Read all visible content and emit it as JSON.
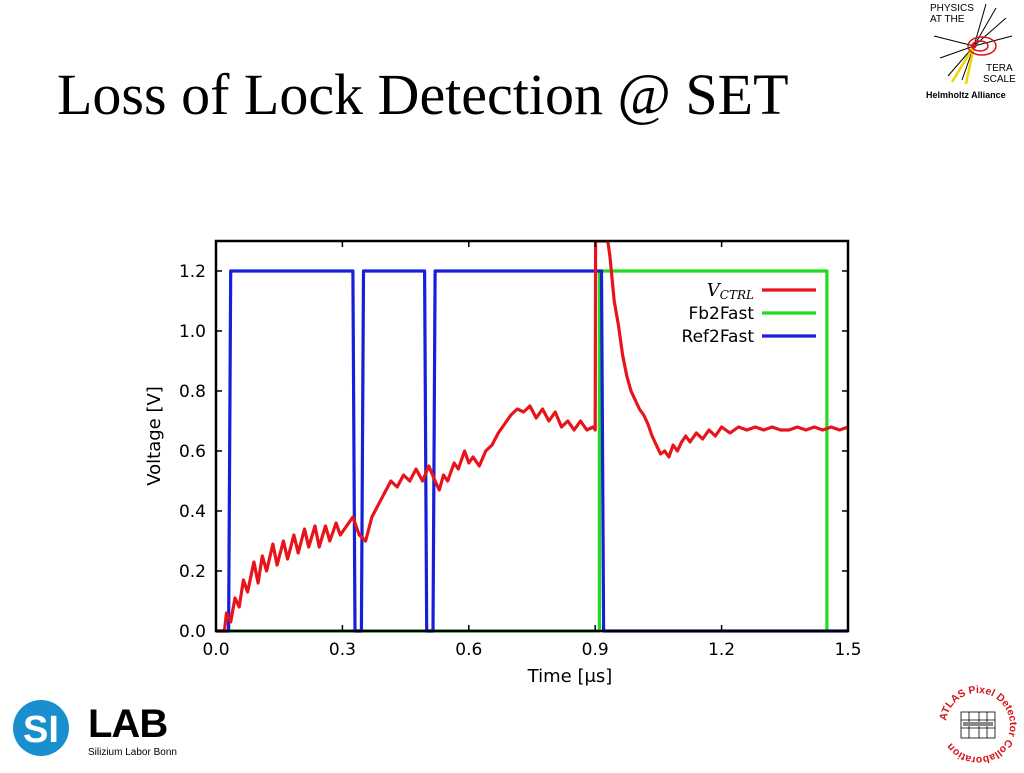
{
  "slide": {
    "title": "Loss of Lock Detection @ SET"
  },
  "logos": {
    "physics_terascale": {
      "line1": "PHYSICS",
      "line2": "AT THE",
      "line3": "TERA",
      "line4": "SCALE",
      "line5": "Helmholtz Alliance"
    },
    "silab": {
      "mark": "SI",
      "name": "LAB",
      "subtitle": "Silizium Labor Bonn"
    },
    "atlas_pixel": {
      "text": "ATLAS Pixel Detector Collaboration"
    }
  },
  "chart_data": {
    "type": "line",
    "title": "",
    "xlabel": "Time [μs]",
    "ylabel": "Voltage [V]",
    "xlim": [
      0.0,
      1.5
    ],
    "ylim": [
      0.0,
      1.3
    ],
    "xticks": [
      "0.0",
      "0.3",
      "0.6",
      "0.9",
      "1.2",
      "1.5"
    ],
    "yticks": [
      "0.0",
      "0.2",
      "0.4",
      "0.6",
      "0.8",
      "1.0",
      "1.2"
    ],
    "grid": false,
    "legend_position": "top-right",
    "series": [
      {
        "name": "V_CTRL",
        "legend_main": "V",
        "legend_sub": "CTRL",
        "color": "#e8141b",
        "points": [
          [
            0.0,
            0.0
          ],
          [
            0.02,
            0.0
          ],
          [
            0.025,
            0.06
          ],
          [
            0.035,
            0.03
          ],
          [
            0.045,
            0.11
          ],
          [
            0.055,
            0.08
          ],
          [
            0.065,
            0.17
          ],
          [
            0.075,
            0.13
          ],
          [
            0.09,
            0.23
          ],
          [
            0.1,
            0.16
          ],
          [
            0.11,
            0.25
          ],
          [
            0.12,
            0.2
          ],
          [
            0.135,
            0.29
          ],
          [
            0.145,
            0.22
          ],
          [
            0.16,
            0.3
          ],
          [
            0.17,
            0.24
          ],
          [
            0.185,
            0.32
          ],
          [
            0.195,
            0.26
          ],
          [
            0.21,
            0.34
          ],
          [
            0.22,
            0.28
          ],
          [
            0.235,
            0.35
          ],
          [
            0.245,
            0.28
          ],
          [
            0.26,
            0.35
          ],
          [
            0.27,
            0.3
          ],
          [
            0.285,
            0.36
          ],
          [
            0.295,
            0.32
          ],
          [
            0.31,
            0.35
          ],
          [
            0.325,
            0.38
          ],
          [
            0.34,
            0.32
          ],
          [
            0.355,
            0.3
          ],
          [
            0.37,
            0.38
          ],
          [
            0.385,
            0.42
          ],
          [
            0.4,
            0.46
          ],
          [
            0.415,
            0.5
          ],
          [
            0.43,
            0.48
          ],
          [
            0.445,
            0.52
          ],
          [
            0.46,
            0.5
          ],
          [
            0.475,
            0.54
          ],
          [
            0.49,
            0.5
          ],
          [
            0.505,
            0.55
          ],
          [
            0.52,
            0.5
          ],
          [
            0.53,
            0.47
          ],
          [
            0.54,
            0.52
          ],
          [
            0.55,
            0.5
          ],
          [
            0.565,
            0.56
          ],
          [
            0.575,
            0.54
          ],
          [
            0.59,
            0.6
          ],
          [
            0.6,
            0.56
          ],
          [
            0.61,
            0.58
          ],
          [
            0.625,
            0.55
          ],
          [
            0.64,
            0.6
          ],
          [
            0.655,
            0.62
          ],
          [
            0.67,
            0.66
          ],
          [
            0.685,
            0.69
          ],
          [
            0.7,
            0.72
          ],
          [
            0.715,
            0.74
          ],
          [
            0.73,
            0.73
          ],
          [
            0.745,
            0.75
          ],
          [
            0.76,
            0.71
          ],
          [
            0.775,
            0.74
          ],
          [
            0.79,
            0.7
          ],
          [
            0.805,
            0.73
          ],
          [
            0.82,
            0.68
          ],
          [
            0.835,
            0.7
          ],
          [
            0.85,
            0.67
          ],
          [
            0.865,
            0.7
          ],
          [
            0.88,
            0.67
          ],
          [
            0.895,
            0.68
          ],
          [
            0.9,
            0.67
          ],
          [
            0.901,
            1.3
          ],
          [
            0.93,
            1.3
          ],
          [
            0.935,
            1.25
          ],
          [
            0.945,
            1.1
          ],
          [
            0.955,
            1.02
          ],
          [
            0.965,
            0.92
          ],
          [
            0.975,
            0.85
          ],
          [
            0.985,
            0.8
          ],
          [
            0.995,
            0.77
          ],
          [
            1.005,
            0.74
          ],
          [
            1.015,
            0.72
          ],
          [
            1.025,
            0.69
          ],
          [
            1.035,
            0.65
          ],
          [
            1.045,
            0.62
          ],
          [
            1.055,
            0.59
          ],
          [
            1.065,
            0.6
          ],
          [
            1.075,
            0.58
          ],
          [
            1.085,
            0.62
          ],
          [
            1.095,
            0.6
          ],
          [
            1.105,
            0.63
          ],
          [
            1.115,
            0.65
          ],
          [
            1.125,
            0.63
          ],
          [
            1.14,
            0.66
          ],
          [
            1.155,
            0.64
          ],
          [
            1.17,
            0.67
          ],
          [
            1.185,
            0.65
          ],
          [
            1.2,
            0.68
          ],
          [
            1.22,
            0.66
          ],
          [
            1.24,
            0.68
          ],
          [
            1.26,
            0.67
          ],
          [
            1.28,
            0.68
          ],
          [
            1.3,
            0.67
          ],
          [
            1.32,
            0.68
          ],
          [
            1.34,
            0.67
          ],
          [
            1.36,
            0.67
          ],
          [
            1.38,
            0.68
          ],
          [
            1.4,
            0.67
          ],
          [
            1.42,
            0.68
          ],
          [
            1.44,
            0.67
          ],
          [
            1.46,
            0.68
          ],
          [
            1.48,
            0.67
          ],
          [
            1.5,
            0.68
          ]
        ]
      },
      {
        "name": "Fb2Fast",
        "color": "#1fdc1f",
        "points": [
          [
            0.0,
            0.0
          ],
          [
            0.91,
            0.0
          ],
          [
            0.91,
            1.2
          ],
          [
            1.45,
            1.2
          ],
          [
            1.45,
            0.0
          ]
        ]
      },
      {
        "name": "Ref2Fast",
        "color": "#1620d8",
        "points": [
          [
            0.0,
            0.0
          ],
          [
            0.03,
            0.0
          ],
          [
            0.035,
            1.2
          ],
          [
            0.325,
            1.2
          ],
          [
            0.33,
            0.0
          ],
          [
            0.345,
            0.0
          ],
          [
            0.35,
            1.2
          ],
          [
            0.495,
            1.2
          ],
          [
            0.5,
            0.0
          ],
          [
            0.515,
            0.0
          ],
          [
            0.52,
            1.2
          ],
          [
            0.915,
            1.2
          ],
          [
            0.92,
            0.0
          ],
          [
            1.5,
            0.0
          ]
        ]
      }
    ]
  }
}
